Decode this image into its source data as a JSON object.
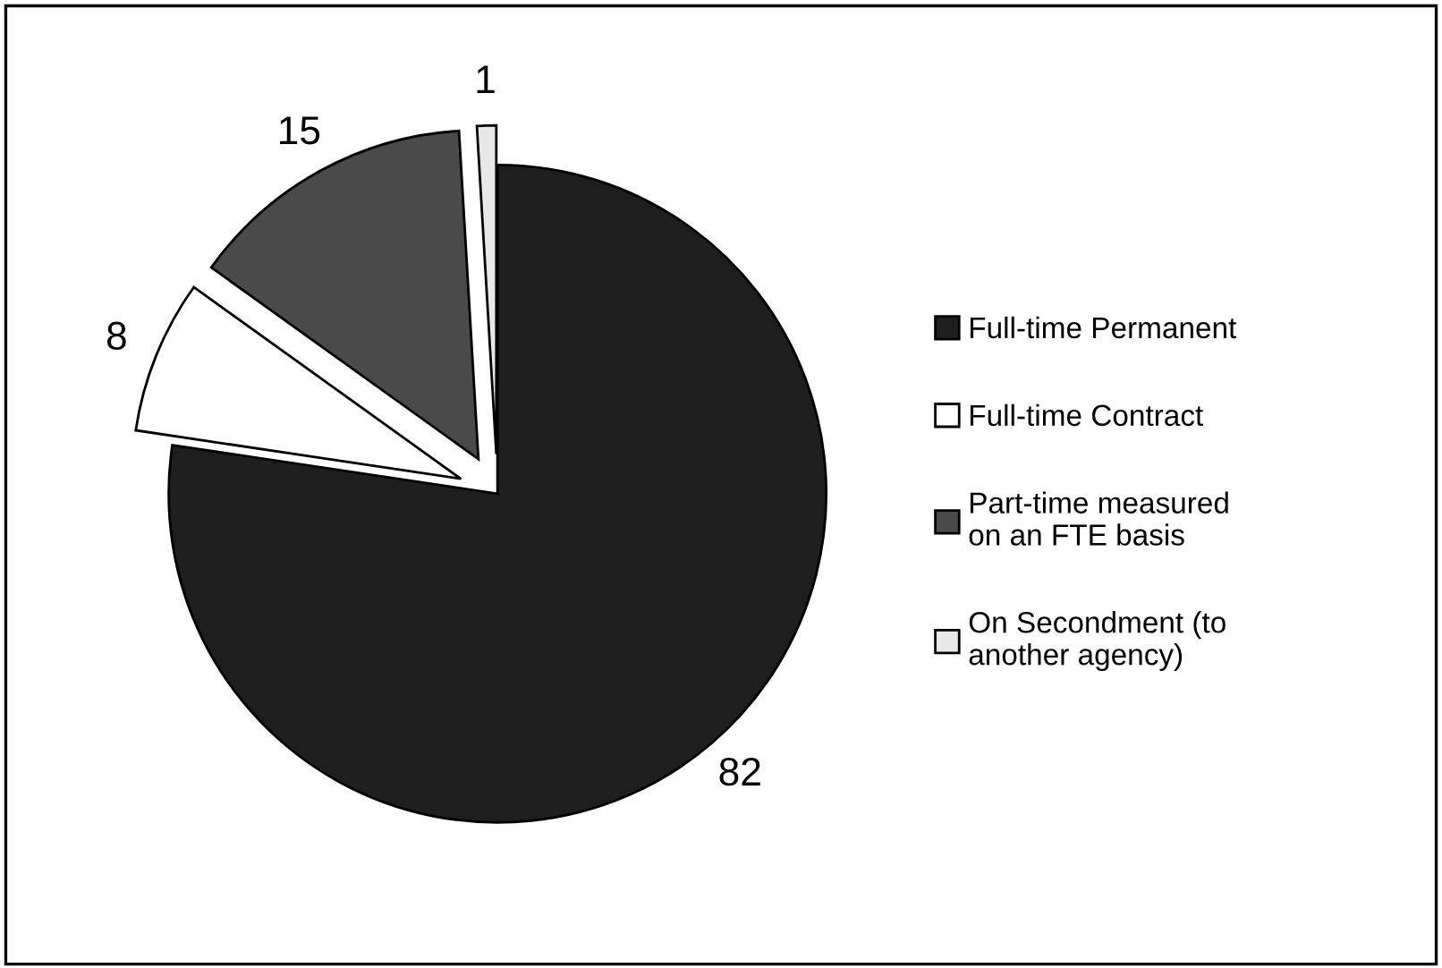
{
  "chart_data": {
    "type": "pie",
    "categories": [
      "Full-time Permanent",
      "Full-time Contract",
      "Part-time measured on an FTE basis",
      "On Secondment (to another agency)"
    ],
    "values": [
      82,
      8,
      15,
      1
    ],
    "colors": [
      "#1e1e1e",
      "#ffffff",
      "#4a4a4a",
      "#e8e8e8"
    ],
    "data_labels": true,
    "legend": "right"
  }
}
